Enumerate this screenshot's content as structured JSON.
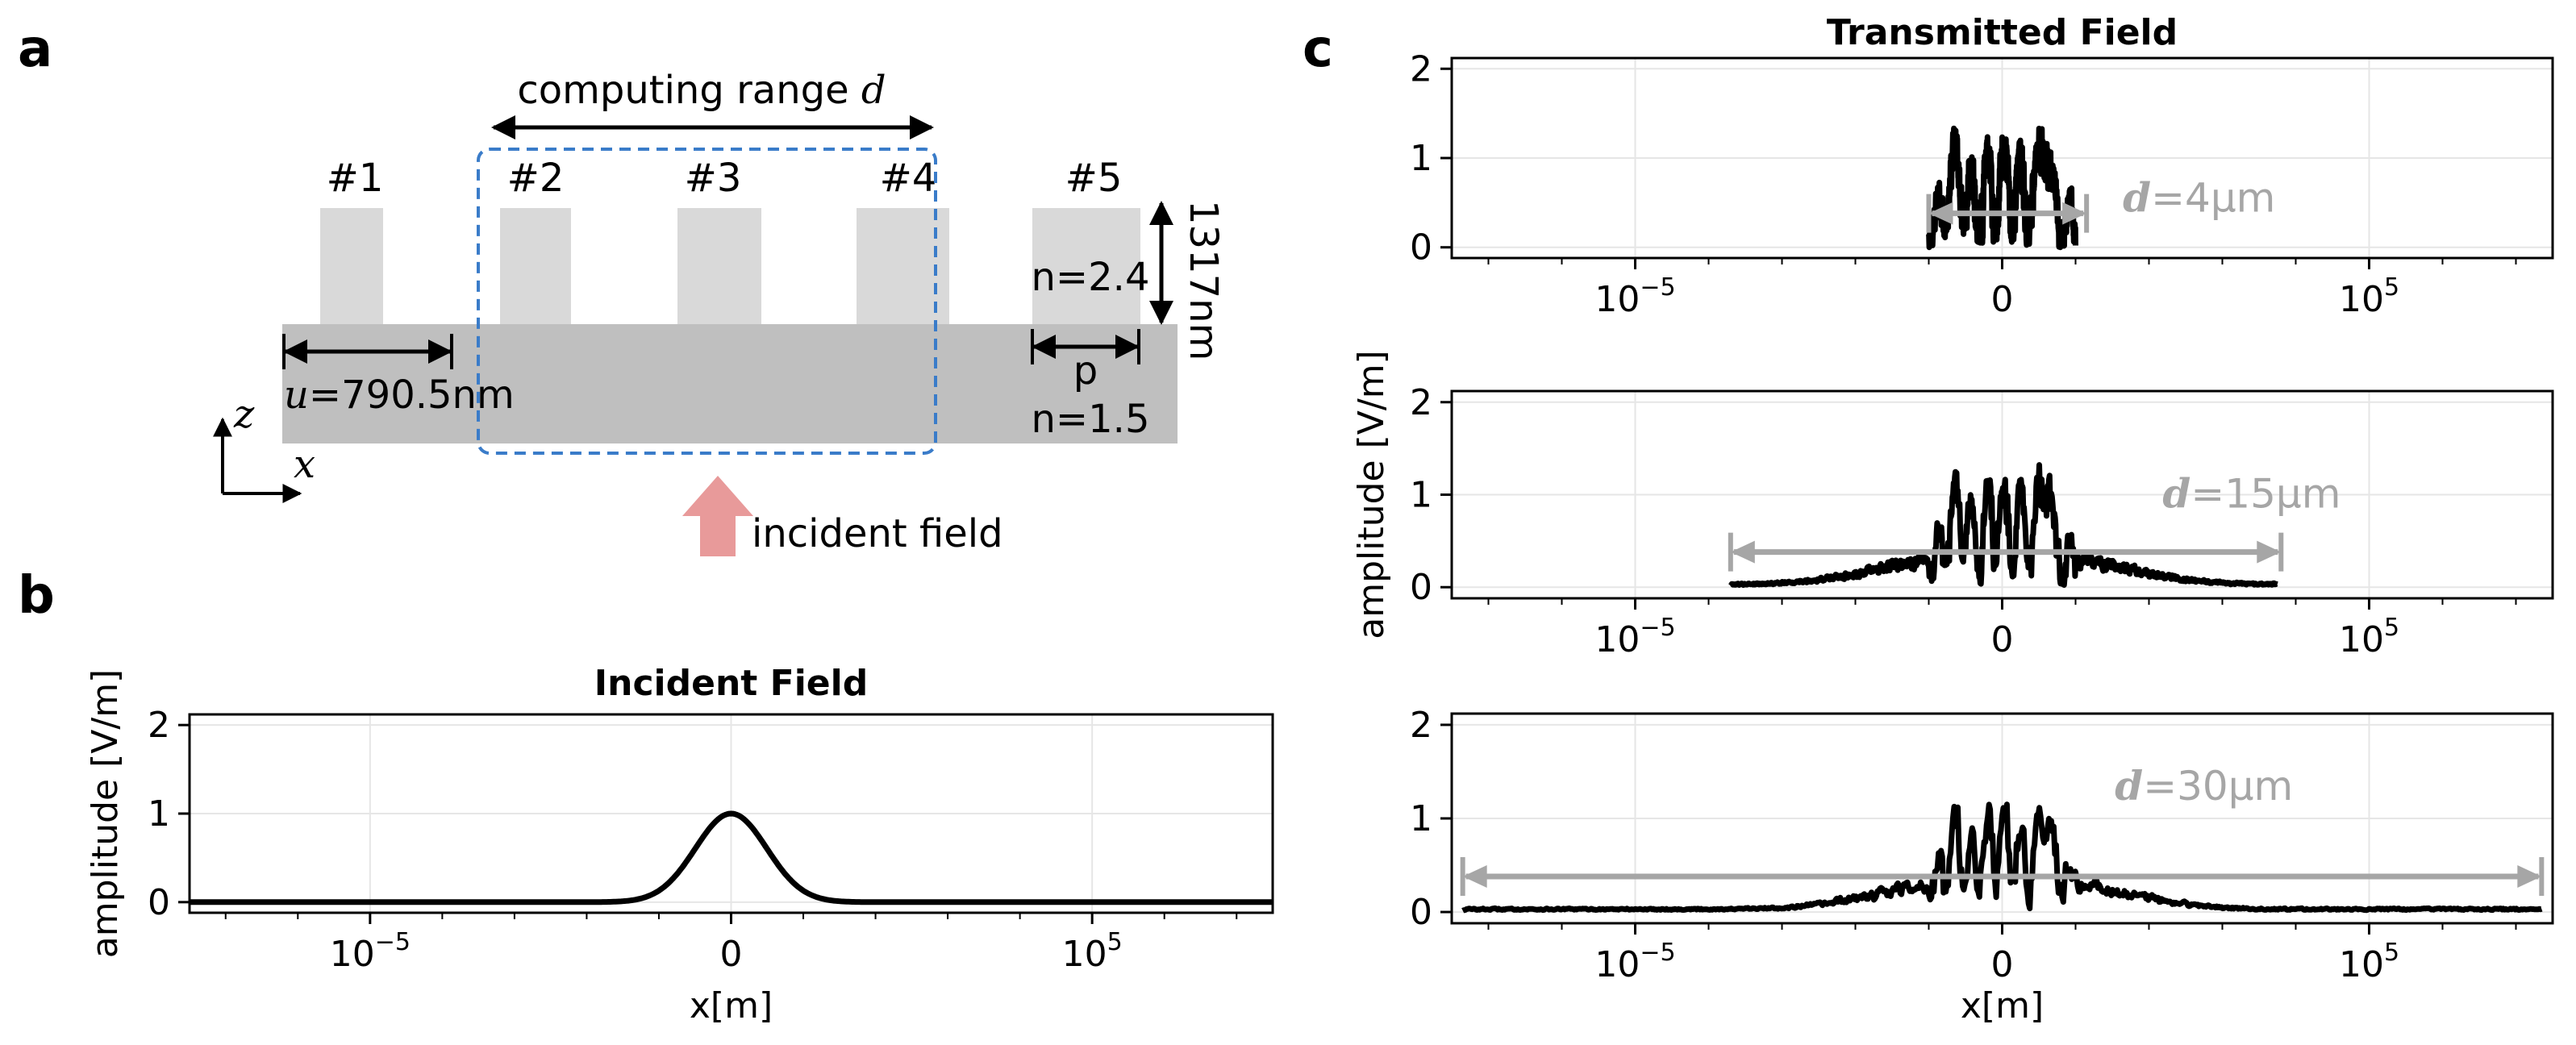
{
  "panel_labels": [
    "a",
    "b",
    "c"
  ],
  "diagram": {
    "computing_range_text": "computing range ",
    "computing_range_var": "d",
    "pillars": [
      "#1",
      "#2",
      "#3",
      "#4",
      "#5"
    ],
    "height_label": "1317nm",
    "u_var": "u",
    "u_label": "=790.5nm",
    "n_pillar": "n=2.4",
    "p_label": "p",
    "n_substrate": "n=1.5",
    "axis_z": "z",
    "axis_x": "x",
    "incident_label": "incident field",
    "colors": {
      "pillar": "#d9d9d9",
      "substrate": "#bfbfbf",
      "range_box": "#3a7cc9",
      "arrow": "#e89a9a"
    }
  },
  "chart_data": [
    {
      "id": "incident",
      "type": "line",
      "title": "Incident Field",
      "xlabel": "x[m]",
      "ylabel": "amplitude [V/m]",
      "x_ticks": [
        {
          "label": "10",
          "exp": "−5",
          "pos": -1
        },
        {
          "label": "0",
          "exp": "",
          "pos": 0
        },
        {
          "label": "10",
          "exp": "5",
          "pos": 1
        }
      ],
      "y_ticks": [
        0,
        1,
        2
      ],
      "xlim": [
        -1.5,
        1.5
      ],
      "ylim": [
        -0.12,
        2.12
      ],
      "series": [
        {
          "name": "gaussian",
          "x_range": [
            -1.5,
            1.5
          ],
          "peak": 1.0,
          "width": 0.14
        }
      ]
    },
    {
      "id": "d4",
      "type": "line",
      "title": "Transmitted Field",
      "xlabel": "",
      "ylabel": "",
      "x_ticks": [
        {
          "label": "10",
          "exp": "−5",
          "pos": -1
        },
        {
          "label": "0",
          "exp": "",
          "pos": 0
        },
        {
          "label": "10",
          "exp": "5",
          "pos": 1
        }
      ],
      "y_ticks": [
        0,
        1,
        2
      ],
      "xlim": [
        -1.5,
        1.5
      ],
      "ylim": [
        -0.12,
        2.12
      ],
      "annotation": {
        "var": "d",
        "text": "=4μm",
        "x_range": [
          -0.2,
          0.23
        ]
      },
      "series": [
        {
          "name": "transmitted",
          "x_range": [
            -0.2,
            0.2
          ]
        }
      ]
    },
    {
      "id": "d15",
      "type": "line",
      "title": "",
      "xlabel": "",
      "ylabel": "amplitude [V/m]",
      "x_ticks": [
        {
          "label": "10",
          "exp": "−5",
          "pos": -1
        },
        {
          "label": "0",
          "exp": "",
          "pos": 0
        },
        {
          "label": "10",
          "exp": "5",
          "pos": 1
        }
      ],
      "y_ticks": [
        0,
        1,
        2
      ],
      "xlim": [
        -1.5,
        1.5
      ],
      "ylim": [
        -0.12,
        2.12
      ],
      "annotation": {
        "var": "d",
        "text": "=15μm",
        "x_range": [
          -0.74,
          0.76
        ]
      },
      "series": [
        {
          "name": "transmitted",
          "x_range": [
            -0.74,
            0.75
          ]
        }
      ]
    },
    {
      "id": "d30",
      "type": "line",
      "title": "",
      "xlabel": "x[m]",
      "ylabel": "",
      "x_ticks": [
        {
          "label": "10",
          "exp": "−5",
          "pos": -1
        },
        {
          "label": "0",
          "exp": "",
          "pos": 0
        },
        {
          "label": "10",
          "exp": "5",
          "pos": 1
        }
      ],
      "y_ticks": [
        0,
        1,
        2
      ],
      "xlim": [
        -1.5,
        1.5
      ],
      "ylim": [
        -0.12,
        2.12
      ],
      "annotation": {
        "var": "d",
        "text": "=30μm",
        "x_range": [
          -1.47,
          1.47
        ]
      },
      "series": [
        {
          "name": "transmitted",
          "x_range": [
            -1.47,
            1.47
          ]
        }
      ]
    }
  ]
}
